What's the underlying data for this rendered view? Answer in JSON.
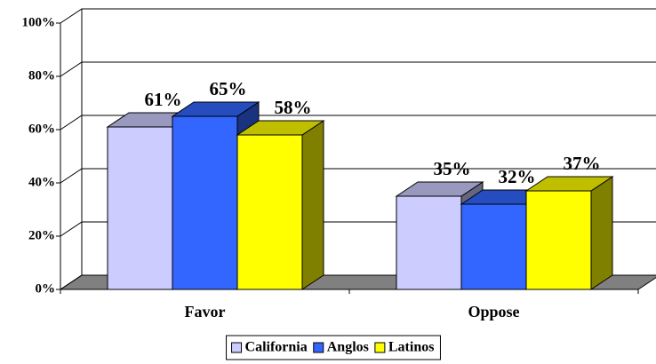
{
  "chart_data": {
    "type": "bar3d",
    "categories": [
      "Favor",
      "Oppose"
    ],
    "series": [
      {
        "name": "California",
        "color": "#ccccff",
        "values": [
          61,
          35
        ],
        "value_labels": [
          "61%",
          "35%"
        ]
      },
      {
        "name": "Anglos",
        "color": "#3366ff",
        "values": [
          65,
          32
        ],
        "value_labels": [
          "65%",
          "32%"
        ]
      },
      {
        "name": "Latinos",
        "color": "#ffff00",
        "values": [
          58,
          37
        ],
        "value_labels": [
          "58%",
          "37%"
        ]
      }
    ],
    "ylim": [
      0,
      100
    ],
    "yticks": [
      {
        "value": 0,
        "label": "0%"
      },
      {
        "value": 20,
        "label": "20%"
      },
      {
        "value": 40,
        "label": "40%"
      },
      {
        "value": 60,
        "label": "60%"
      },
      {
        "value": 80,
        "label": "80%"
      },
      {
        "value": 100,
        "label": "100%"
      }
    ],
    "grid": true,
    "legend": "bottom"
  }
}
